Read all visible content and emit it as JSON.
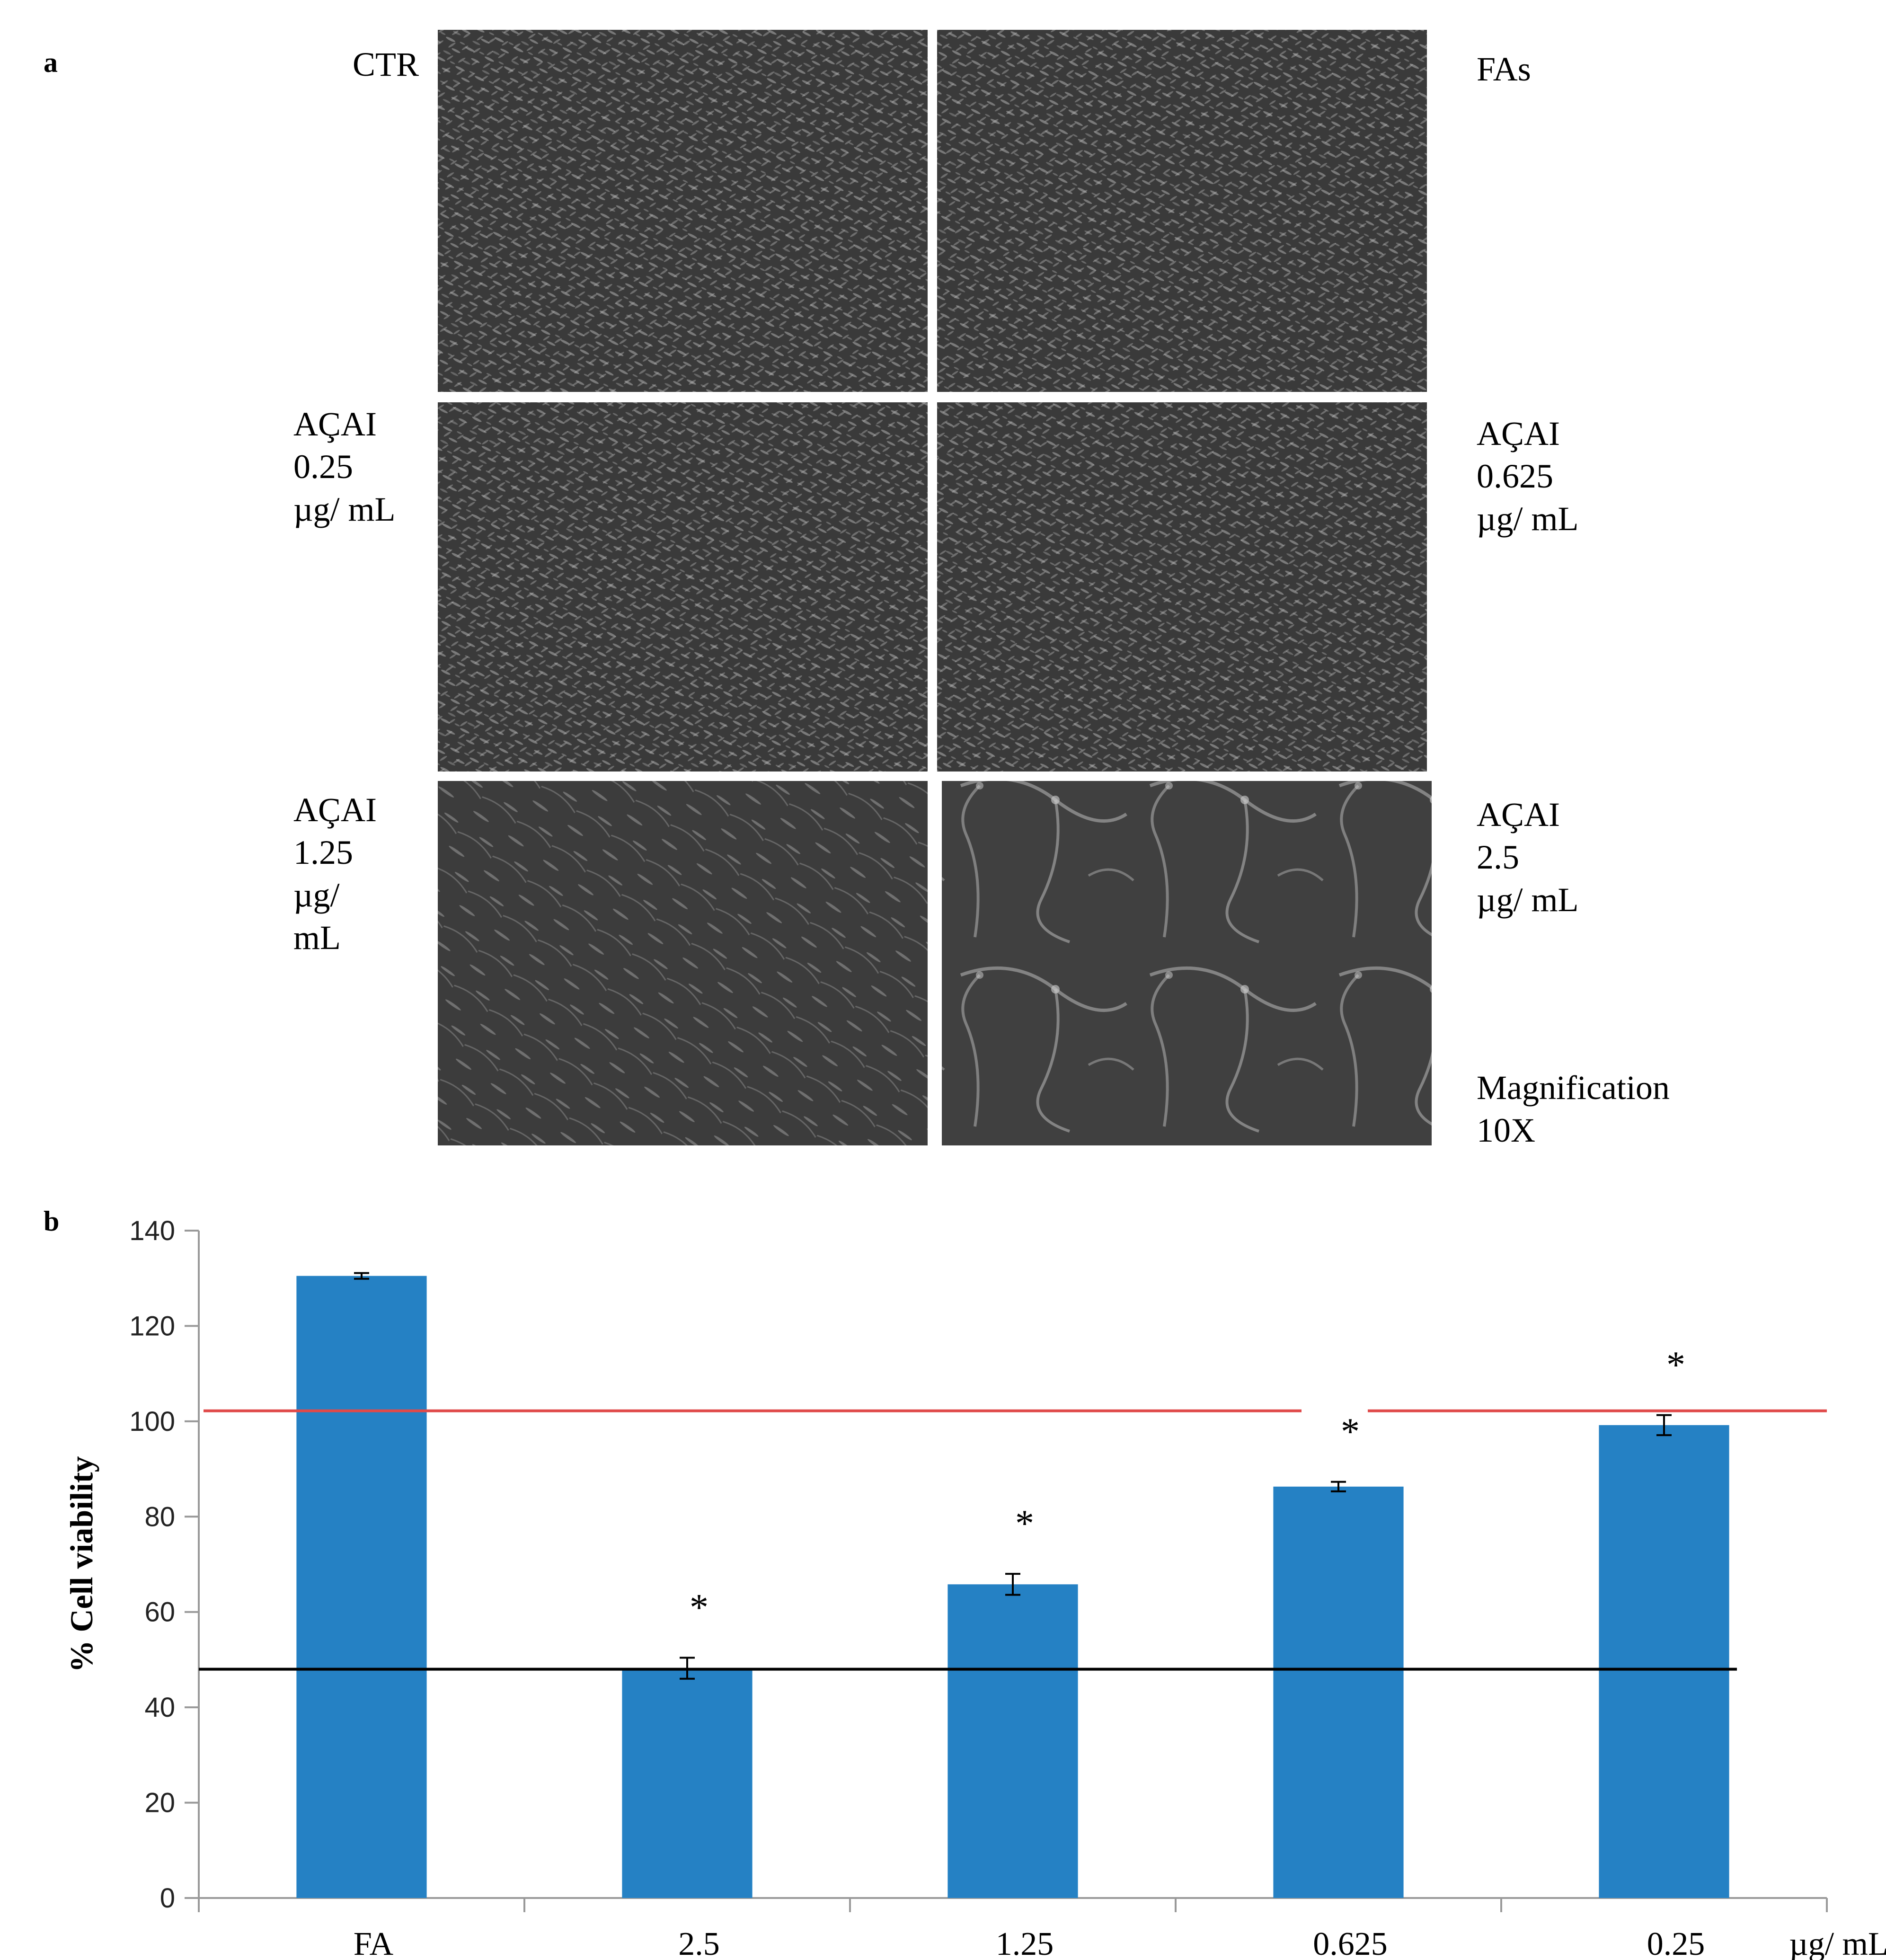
{
  "panel_a": {
    "letter": "a",
    "images": [
      {
        "label_lines": [
          "CTR"
        ],
        "icon": "cell-micrograph-dense",
        "side": "left"
      },
      {
        "label_lines": [
          "FAs"
        ],
        "icon": "cell-micrograph-dense",
        "side": "right"
      },
      {
        "label_lines": [
          "AÇAI",
          "0.25",
          "µg/ mL"
        ],
        "icon": "cell-micrograph-dense",
        "side": "left"
      },
      {
        "label_lines": [
          "AÇAI",
          "0.625",
          "µg/ mL"
        ],
        "icon": "cell-micrograph-dense",
        "side": "right"
      },
      {
        "label_lines": [
          "AÇAI",
          "1.25",
          "µg/",
          "mL"
        ],
        "icon": "cell-micrograph-sparse",
        "side": "left"
      },
      {
        "label_lines": [
          "AÇAI",
          "2.5",
          "µg/ mL"
        ],
        "icon": "cell-micrograph-network",
        "side": "right"
      }
    ],
    "magnification_lines": [
      "Magnification",
      "10X"
    ]
  },
  "panel_b": {
    "letter": "b",
    "x_unit_label": "µg/ mL"
  },
  "chart_data": {
    "type": "bar",
    "categories": [
      "FA",
      "2.5",
      "1.25",
      "0.625",
      "0.25"
    ],
    "values": [
      130.5,
      48.2,
      65.8,
      86.3,
      99.2
    ],
    "errors": [
      0.6,
      2.2,
      2.2,
      1.0,
      2.1
    ],
    "significance": [
      "",
      "*",
      "*",
      "*",
      "*"
    ],
    "ylabel": "% Cell viability",
    "ylim": [
      0,
      140
    ],
    "yticks": [
      0,
      20,
      40,
      60,
      80,
      100,
      120,
      140
    ],
    "bar_color": "#2581c4",
    "reference_lines": [
      {
        "color": "#e04a4a",
        "y": 102.2
      },
      {
        "color": "#000000",
        "y": 48.0
      }
    ]
  }
}
